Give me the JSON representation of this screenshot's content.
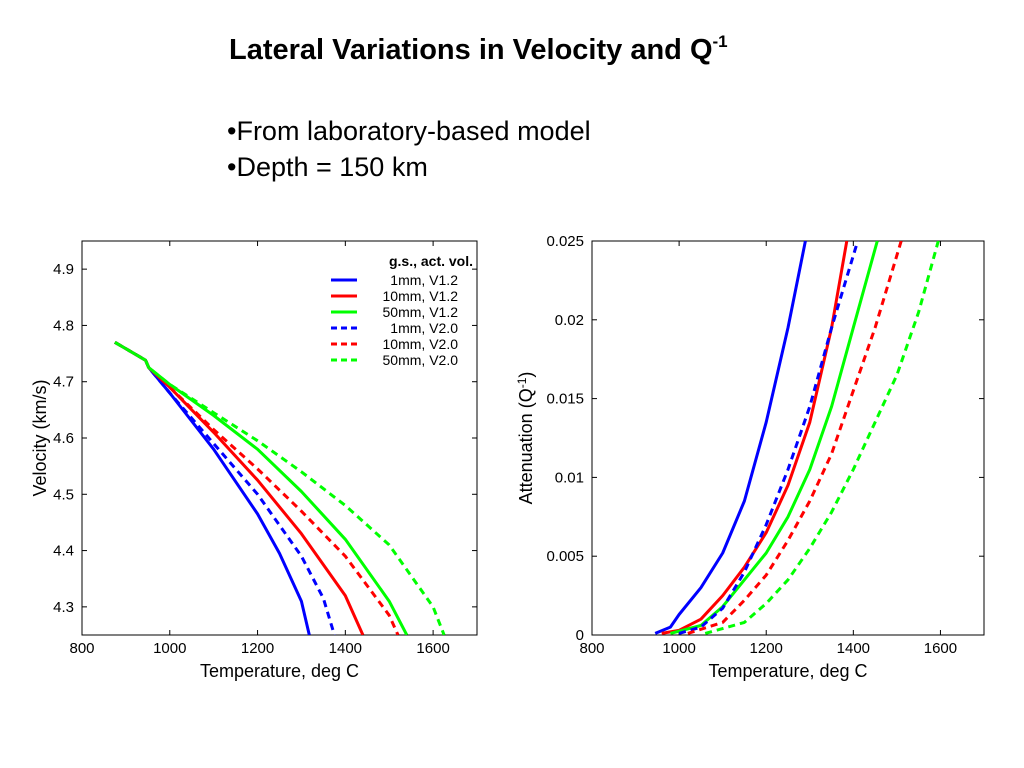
{
  "slide": {
    "title": "Lateral Variations in Velocity and Q",
    "title_sup": "-1",
    "bullets": [
      "•From laboratory-based model",
      "•Depth = 150 km"
    ]
  },
  "chart_data": [
    {
      "type": "line",
      "xlabel": "Temperature, deg C",
      "ylabel": "Velocity (km/s)",
      "xlim": [
        800,
        1700
      ],
      "ylim": [
        4.25,
        4.95
      ],
      "xticks": [
        800,
        1000,
        1200,
        1400,
        1600
      ],
      "yticks": [
        4.3,
        4.4,
        4.5,
        4.6,
        4.7,
        4.8,
        4.9
      ],
      "grid": false,
      "legend": {
        "title": "g.s., act. vol.",
        "placement": "top-right",
        "entries": [
          "1mm, V1.2",
          "10mm, V1.2",
          "50mm, V1.2",
          "1mm, V2.0",
          "10mm, V2.0",
          "50mm, V2.0"
        ]
      },
      "series": [
        {
          "name": "1mm, V1.2",
          "color": "#0000ff",
          "dash": "solid",
          "x": [
            875,
            930,
            945,
            952,
            1000,
            1100,
            1200,
            1250,
            1300,
            1318
          ],
          "y": [
            4.77,
            4.745,
            4.738,
            4.725,
            4.68,
            4.58,
            4.465,
            4.395,
            4.31,
            4.25
          ]
        },
        {
          "name": "10mm, V1.2",
          "color": "#ff0000",
          "dash": "solid",
          "x": [
            875,
            930,
            945,
            952,
            1000,
            1100,
            1200,
            1300,
            1400,
            1440
          ],
          "y": [
            4.77,
            4.745,
            4.738,
            4.725,
            4.69,
            4.61,
            4.525,
            4.43,
            4.32,
            4.25
          ]
        },
        {
          "name": "50mm, V1.2",
          "color": "#00ff00",
          "dash": "solid",
          "x": [
            875,
            930,
            945,
            952,
            1000,
            1100,
            1200,
            1300,
            1400,
            1500,
            1540
          ],
          "y": [
            4.77,
            4.745,
            4.738,
            4.725,
            4.695,
            4.64,
            4.58,
            4.505,
            4.42,
            4.31,
            4.25
          ]
        },
        {
          "name": "1mm, V2.0",
          "color": "#0000ff",
          "dash": "dashed",
          "x": [
            875,
            930,
            945,
            952,
            1000,
            1100,
            1200,
            1300,
            1350,
            1375
          ],
          "y": [
            4.77,
            4.745,
            4.738,
            4.725,
            4.68,
            4.59,
            4.5,
            4.39,
            4.315,
            4.25
          ]
        },
        {
          "name": "10mm, V2.0",
          "color": "#ff0000",
          "dash": "dashed",
          "x": [
            875,
            930,
            945,
            952,
            1000,
            1100,
            1200,
            1300,
            1400,
            1500,
            1520
          ],
          "y": [
            4.77,
            4.745,
            4.738,
            4.725,
            4.69,
            4.615,
            4.545,
            4.47,
            4.39,
            4.285,
            4.25
          ]
        },
        {
          "name": "50mm, V2.0",
          "color": "#00ff00",
          "dash": "dashed",
          "x": [
            875,
            930,
            945,
            952,
            1000,
            1100,
            1200,
            1300,
            1400,
            1500,
            1600,
            1625
          ],
          "y": [
            4.77,
            4.745,
            4.738,
            4.725,
            4.695,
            4.645,
            4.595,
            4.54,
            4.48,
            4.41,
            4.3,
            4.25
          ]
        }
      ]
    },
    {
      "type": "line",
      "xlabel": "Temperature, deg C",
      "ylabel": "Attenuation (Q",
      "ylabel_sup": "-1",
      "ylabel_end": ")",
      "xlim": [
        800,
        1700
      ],
      "ylim": [
        0,
        0.025
      ],
      "xticks": [
        800,
        1000,
        1200,
        1400,
        1600
      ],
      "yticks": [
        0,
        0.005,
        0.01,
        0.015,
        0.02,
        0.025
      ],
      "ytick_labels": [
        "0",
        "0.005",
        "0.01",
        "0.015",
        "0.02",
        "0.025"
      ],
      "grid": false,
      "series": [
        {
          "name": "1mm, V1.2",
          "color": "#0000ff",
          "dash": "solid",
          "x": [
            945,
            980,
            1000,
            1050,
            1100,
            1150,
            1200,
            1250,
            1290
          ],
          "y": [
            0.0001,
            0.0005,
            0.0013,
            0.003,
            0.0052,
            0.0085,
            0.0135,
            0.0195,
            0.025
          ]
        },
        {
          "name": "10mm, V1.2",
          "color": "#ff0000",
          "dash": "solid",
          "x": [
            960,
            1000,
            1050,
            1100,
            1150,
            1200,
            1250,
            1300,
            1350,
            1385
          ],
          "y": [
            0.0001,
            0.0003,
            0.001,
            0.0025,
            0.0043,
            0.0065,
            0.0095,
            0.0135,
            0.0195,
            0.025
          ]
        },
        {
          "name": "50mm, V1.2",
          "color": "#00ff00",
          "dash": "solid",
          "x": [
            980,
            1050,
            1100,
            1150,
            1200,
            1250,
            1300,
            1350,
            1400,
            1455
          ],
          "y": [
            0.0001,
            0.0006,
            0.0018,
            0.0035,
            0.0052,
            0.0075,
            0.0105,
            0.0145,
            0.0195,
            0.025
          ]
        },
        {
          "name": "1mm, V2.0",
          "color": "#0000ff",
          "dash": "dashed",
          "x": [
            1000,
            1050,
            1100,
            1150,
            1200,
            1250,
            1300,
            1350,
            1410
          ],
          "y": [
            0.0001,
            0.0005,
            0.0017,
            0.004,
            0.007,
            0.0105,
            0.0145,
            0.0195,
            0.025
          ]
        },
        {
          "name": "10mm, V2.0",
          "color": "#ff0000",
          "dash": "dashed",
          "x": [
            1020,
            1100,
            1150,
            1200,
            1250,
            1300,
            1350,
            1400,
            1450,
            1510
          ],
          "y": [
            0.0001,
            0.0008,
            0.0022,
            0.0038,
            0.006,
            0.0085,
            0.0115,
            0.0155,
            0.0195,
            0.025
          ]
        },
        {
          "name": "50mm, V2.0",
          "color": "#00ff00",
          "dash": "dashed",
          "x": [
            1060,
            1150,
            1200,
            1250,
            1300,
            1350,
            1400,
            1450,
            1500,
            1550,
            1595
          ],
          "y": [
            0.0001,
            0.0008,
            0.002,
            0.0035,
            0.0055,
            0.0078,
            0.0105,
            0.0135,
            0.0165,
            0.0205,
            0.025
          ]
        }
      ]
    }
  ]
}
